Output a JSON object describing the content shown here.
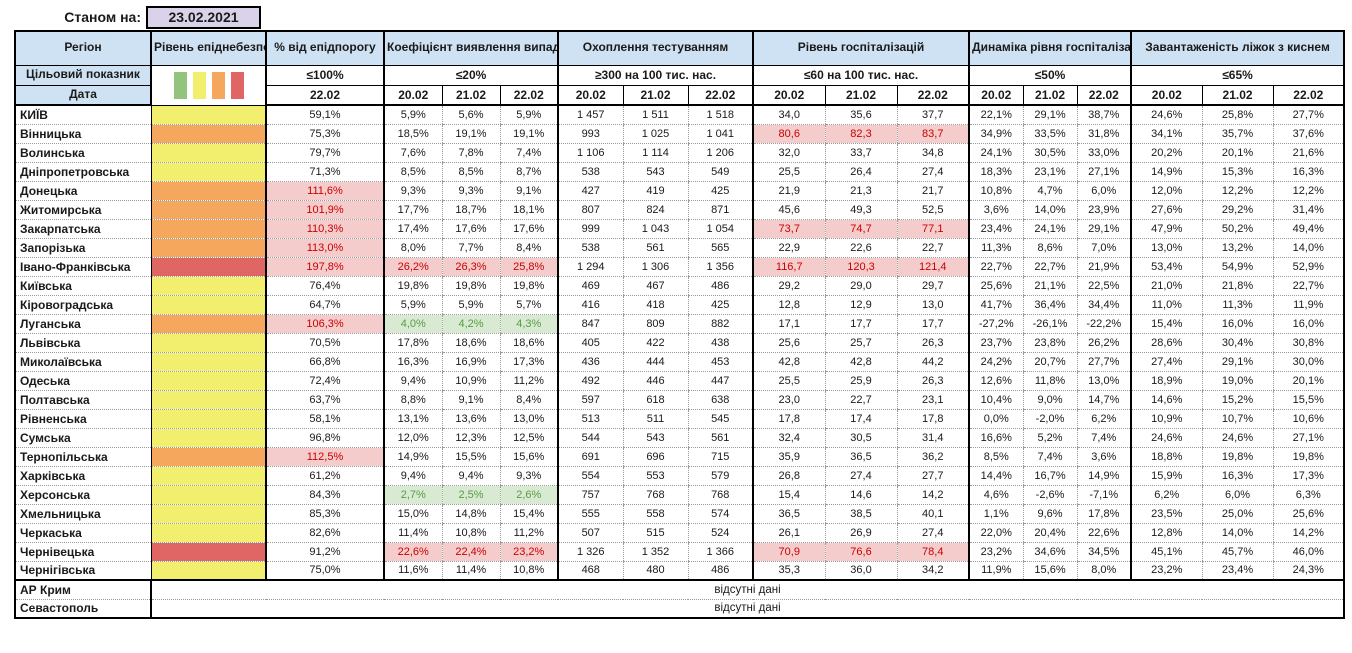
{
  "report": {
    "as_of_label": "Станом на:",
    "as_of_date": "23.02.2021"
  },
  "columns": {
    "region": "Регіон",
    "danger": "Рівень епіднебезпеки",
    "threshold": "% від епідпорогу",
    "detection": "Коефіцієнт виявлення випадків інфікування",
    "testing": "Охоплення тестуванням",
    "hospitalization": "Рівень госпіталізацій",
    "dynamics": "Динаміка рівня госпіталізацій",
    "oxygen": "Завантаженість ліжок з киснем"
  },
  "targets": {
    "row_label": "Цільовий показник",
    "threshold": "≤100%",
    "detection": "≤20%",
    "testing": "≥300 на 100 тис. нас.",
    "hospitalization": "≤60 на 100 тис. нас.",
    "dynamics": "≤50%",
    "oxygen": "≤65%"
  },
  "dates": {
    "row_label": "Дата",
    "threshold_date": "22.02",
    "series": [
      "20.02",
      "21.02",
      "22.02"
    ]
  },
  "legend_colors_order": [
    "green",
    "yellow",
    "orange",
    "red"
  ],
  "no_data_text": "відсутні дані",
  "rows": [
    {
      "region": "КИЇВ",
      "danger": "yellow",
      "threshold": "59,1%",
      "threshold_alert": false,
      "detection": [
        "5,9%",
        "5,6%",
        "5,9%"
      ],
      "detection_style": null,
      "testing": [
        "1 457",
        "1 511",
        "1 518"
      ],
      "hospitalization": [
        "34,0",
        "35,6",
        "37,7"
      ],
      "hospitalization_style": null,
      "dynamics": [
        "22,1%",
        "29,1%",
        "38,7%"
      ],
      "oxygen": [
        "24,6%",
        "25,8%",
        "27,7%"
      ]
    },
    {
      "region": "Вінницька",
      "danger": "orange",
      "threshold": "75,3%",
      "threshold_alert": false,
      "detection": [
        "18,5%",
        "19,1%",
        "19,1%"
      ],
      "detection_style": null,
      "testing": [
        "993",
        "1 025",
        "1 041"
      ],
      "hospitalization": [
        "80,6",
        "82,3",
        "83,7"
      ],
      "hospitalization_style": "alert",
      "dynamics": [
        "34,9%",
        "33,5%",
        "31,8%"
      ],
      "oxygen": [
        "34,1%",
        "35,7%",
        "37,6%"
      ]
    },
    {
      "region": "Волинська",
      "danger": "yellow",
      "threshold": "79,7%",
      "threshold_alert": false,
      "detection": [
        "7,6%",
        "7,8%",
        "7,4%"
      ],
      "detection_style": null,
      "testing": [
        "1 106",
        "1 114",
        "1 206"
      ],
      "hospitalization": [
        "32,0",
        "33,7",
        "34,8"
      ],
      "hospitalization_style": null,
      "dynamics": [
        "24,1%",
        "30,5%",
        "33,0%"
      ],
      "oxygen": [
        "20,2%",
        "20,1%",
        "21,6%"
      ]
    },
    {
      "region": "Дніпропетровська",
      "danger": "yellow",
      "threshold": "71,3%",
      "threshold_alert": false,
      "detection": [
        "8,5%",
        "8,5%",
        "8,7%"
      ],
      "detection_style": null,
      "testing": [
        "538",
        "543",
        "549"
      ],
      "hospitalization": [
        "25,5",
        "26,4",
        "27,4"
      ],
      "hospitalization_style": null,
      "dynamics": [
        "18,3%",
        "23,1%",
        "27,1%"
      ],
      "oxygen": [
        "14,9%",
        "15,3%",
        "16,3%"
      ]
    },
    {
      "region": "Донецька",
      "danger": "orange",
      "threshold": "111,6%",
      "threshold_alert": true,
      "detection": [
        "9,3%",
        "9,3%",
        "9,1%"
      ],
      "detection_style": null,
      "testing": [
        "427",
        "419",
        "425"
      ],
      "hospitalization": [
        "21,9",
        "21,3",
        "21,7"
      ],
      "hospitalization_style": null,
      "dynamics": [
        "10,8%",
        "4,7%",
        "6,0%"
      ],
      "oxygen": [
        "12,0%",
        "12,2%",
        "12,2%"
      ]
    },
    {
      "region": "Житомирська",
      "danger": "orange",
      "threshold": "101,9%",
      "threshold_alert": true,
      "detection": [
        "17,7%",
        "18,7%",
        "18,1%"
      ],
      "detection_style": null,
      "testing": [
        "807",
        "824",
        "871"
      ],
      "hospitalization": [
        "45,6",
        "49,3",
        "52,5"
      ],
      "hospitalization_style": null,
      "dynamics": [
        "3,6%",
        "14,0%",
        "23,9%"
      ],
      "oxygen": [
        "27,6%",
        "29,2%",
        "31,4%"
      ]
    },
    {
      "region": "Закарпатська",
      "danger": "orange",
      "threshold": "110,3%",
      "threshold_alert": true,
      "detection": [
        "17,4%",
        "17,6%",
        "17,6%"
      ],
      "detection_style": null,
      "testing": [
        "999",
        "1 043",
        "1 054"
      ],
      "hospitalization": [
        "73,7",
        "74,7",
        "77,1"
      ],
      "hospitalization_style": "alert",
      "dynamics": [
        "23,4%",
        "24,1%",
        "29,1%"
      ],
      "oxygen": [
        "47,9%",
        "50,2%",
        "49,4%"
      ]
    },
    {
      "region": "Запорізька",
      "danger": "orange",
      "threshold": "113,0%",
      "threshold_alert": true,
      "detection": [
        "8,0%",
        "7,7%",
        "8,4%"
      ],
      "detection_style": null,
      "testing": [
        "538",
        "561",
        "565"
      ],
      "hospitalization": [
        "22,9",
        "22,6",
        "22,7"
      ],
      "hospitalization_style": null,
      "dynamics": [
        "11,3%",
        "8,6%",
        "7,0%"
      ],
      "oxygen": [
        "13,0%",
        "13,2%",
        "14,0%"
      ]
    },
    {
      "region": "Івано-Франківська",
      "danger": "red",
      "threshold": "197,8%",
      "threshold_alert": true,
      "detection": [
        "26,2%",
        "26,3%",
        "25,8%"
      ],
      "detection_style": "alert",
      "testing": [
        "1 294",
        "1 306",
        "1 356"
      ],
      "hospitalization": [
        "116,7",
        "120,3",
        "121,4"
      ],
      "hospitalization_style": "alert",
      "dynamics": [
        "22,7%",
        "22,7%",
        "21,9%"
      ],
      "oxygen": [
        "53,4%",
        "54,9%",
        "52,9%"
      ]
    },
    {
      "region": "Київська",
      "danger": "yellow",
      "threshold": "76,4%",
      "threshold_alert": false,
      "detection": [
        "19,8%",
        "19,8%",
        "19,8%"
      ],
      "detection_style": null,
      "testing": [
        "469",
        "467",
        "486"
      ],
      "hospitalization": [
        "29,2",
        "29,0",
        "29,7"
      ],
      "hospitalization_style": null,
      "dynamics": [
        "25,6%",
        "21,1%",
        "22,5%"
      ],
      "oxygen": [
        "21,0%",
        "21,8%",
        "22,7%"
      ]
    },
    {
      "region": "Кіровоградська",
      "danger": "yellow",
      "threshold": "64,7%",
      "threshold_alert": false,
      "detection": [
        "5,9%",
        "5,9%",
        "5,7%"
      ],
      "detection_style": null,
      "testing": [
        "416",
        "418",
        "425"
      ],
      "hospitalization": [
        "12,8",
        "12,9",
        "13,0"
      ],
      "hospitalization_style": null,
      "dynamics": [
        "41,7%",
        "36,4%",
        "34,4%"
      ],
      "oxygen": [
        "11,0%",
        "11,3%",
        "11,9%"
      ]
    },
    {
      "region": "Луганська",
      "danger": "orange",
      "threshold": "106,3%",
      "threshold_alert": true,
      "detection": [
        "4,0%",
        "4,2%",
        "4,3%"
      ],
      "detection_style": "good",
      "testing": [
        "847",
        "809",
        "882"
      ],
      "hospitalization": [
        "17,1",
        "17,7",
        "17,7"
      ],
      "hospitalization_style": null,
      "dynamics": [
        "-27,2%",
        "-26,1%",
        "-22,2%"
      ],
      "oxygen": [
        "15,4%",
        "16,0%",
        "16,0%"
      ]
    },
    {
      "region": "Львівська",
      "danger": "yellow",
      "threshold": "70,5%",
      "threshold_alert": false,
      "detection": [
        "17,8%",
        "18,6%",
        "18,6%"
      ],
      "detection_style": null,
      "testing": [
        "405",
        "422",
        "438"
      ],
      "hospitalization": [
        "25,6",
        "25,7",
        "26,3"
      ],
      "hospitalization_style": null,
      "dynamics": [
        "23,7%",
        "23,8%",
        "26,2%"
      ],
      "oxygen": [
        "28,6%",
        "30,4%",
        "30,8%"
      ]
    },
    {
      "region": "Миколаївська",
      "danger": "yellow",
      "threshold": "66,8%",
      "threshold_alert": false,
      "detection": [
        "16,3%",
        "16,9%",
        "17,3%"
      ],
      "detection_style": null,
      "testing": [
        "436",
        "444",
        "453"
      ],
      "hospitalization": [
        "42,8",
        "42,8",
        "44,2"
      ],
      "hospitalization_style": null,
      "dynamics": [
        "24,2%",
        "20,7%",
        "27,7%"
      ],
      "oxygen": [
        "27,4%",
        "29,1%",
        "30,0%"
      ]
    },
    {
      "region": "Одеська",
      "danger": "yellow",
      "threshold": "72,4%",
      "threshold_alert": false,
      "detection": [
        "9,4%",
        "10,9%",
        "11,2%"
      ],
      "detection_style": null,
      "testing": [
        "492",
        "446",
        "447"
      ],
      "hospitalization": [
        "25,5",
        "25,9",
        "26,3"
      ],
      "hospitalization_style": null,
      "dynamics": [
        "12,6%",
        "11,8%",
        "13,0%"
      ],
      "oxygen": [
        "18,9%",
        "19,0%",
        "20,1%"
      ]
    },
    {
      "region": "Полтавська",
      "danger": "yellow",
      "threshold": "63,7%",
      "threshold_alert": false,
      "detection": [
        "8,8%",
        "9,1%",
        "8,4%"
      ],
      "detection_style": null,
      "testing": [
        "597",
        "618",
        "638"
      ],
      "hospitalization": [
        "23,0",
        "22,7",
        "23,1"
      ],
      "hospitalization_style": null,
      "dynamics": [
        "10,4%",
        "9,0%",
        "14,7%"
      ],
      "oxygen": [
        "14,6%",
        "15,2%",
        "15,5%"
      ]
    },
    {
      "region": "Рівненська",
      "danger": "yellow",
      "threshold": "58,1%",
      "threshold_alert": false,
      "detection": [
        "13,1%",
        "13,6%",
        "13,0%"
      ],
      "detection_style": null,
      "testing": [
        "513",
        "511",
        "545"
      ],
      "hospitalization": [
        "17,8",
        "17,4",
        "17,8"
      ],
      "hospitalization_style": null,
      "dynamics": [
        "0,0%",
        "-2,0%",
        "6,2%"
      ],
      "oxygen": [
        "10,9%",
        "10,7%",
        "10,6%"
      ]
    },
    {
      "region": "Сумська",
      "danger": "yellow",
      "threshold": "96,8%",
      "threshold_alert": false,
      "detection": [
        "12,0%",
        "12,3%",
        "12,5%"
      ],
      "detection_style": null,
      "testing": [
        "544",
        "543",
        "561"
      ],
      "hospitalization": [
        "32,4",
        "30,5",
        "31,4"
      ],
      "hospitalization_style": null,
      "dynamics": [
        "16,6%",
        "5,2%",
        "7,4%"
      ],
      "oxygen": [
        "24,6%",
        "24,6%",
        "27,1%"
      ]
    },
    {
      "region": "Тернопільська",
      "danger": "orange",
      "threshold": "112,5%",
      "threshold_alert": true,
      "detection": [
        "14,9%",
        "15,5%",
        "15,6%"
      ],
      "detection_style": null,
      "testing": [
        "691",
        "696",
        "715"
      ],
      "hospitalization": [
        "35,9",
        "36,5",
        "36,2"
      ],
      "hospitalization_style": null,
      "dynamics": [
        "8,5%",
        "7,4%",
        "3,6%"
      ],
      "oxygen": [
        "18,8%",
        "19,8%",
        "19,8%"
      ]
    },
    {
      "region": "Харківська",
      "danger": "yellow",
      "threshold": "61,2%",
      "threshold_alert": false,
      "detection": [
        "9,4%",
        "9,4%",
        "9,3%"
      ],
      "detection_style": null,
      "testing": [
        "554",
        "553",
        "579"
      ],
      "hospitalization": [
        "26,8",
        "27,4",
        "27,7"
      ],
      "hospitalization_style": null,
      "dynamics": [
        "14,4%",
        "16,7%",
        "14,9%"
      ],
      "oxygen": [
        "15,9%",
        "16,3%",
        "17,3%"
      ]
    },
    {
      "region": "Херсонська",
      "danger": "yellow",
      "threshold": "84,3%",
      "threshold_alert": false,
      "detection": [
        "2,7%",
        "2,5%",
        "2,6%"
      ],
      "detection_style": "good",
      "testing": [
        "757",
        "768",
        "768"
      ],
      "hospitalization": [
        "15,4",
        "14,6",
        "14,2"
      ],
      "hospitalization_style": null,
      "dynamics": [
        "4,6%",
        "-2,6%",
        "-7,1%"
      ],
      "oxygen": [
        "6,2%",
        "6,0%",
        "6,3%"
      ]
    },
    {
      "region": "Хмельницька",
      "danger": "yellow",
      "threshold": "85,3%",
      "threshold_alert": false,
      "detection": [
        "15,0%",
        "14,8%",
        "15,4%"
      ],
      "detection_style": null,
      "testing": [
        "555",
        "558",
        "574"
      ],
      "hospitalization": [
        "36,5",
        "38,5",
        "40,1"
      ],
      "hospitalization_style": null,
      "dynamics": [
        "1,1%",
        "9,6%",
        "17,8%"
      ],
      "oxygen": [
        "23,5%",
        "25,0%",
        "25,6%"
      ]
    },
    {
      "region": "Черкаська",
      "danger": "yellow",
      "threshold": "82,6%",
      "threshold_alert": false,
      "detection": [
        "11,4%",
        "10,8%",
        "11,2%"
      ],
      "detection_style": null,
      "testing": [
        "507",
        "515",
        "524"
      ],
      "hospitalization": [
        "26,1",
        "26,9",
        "27,4"
      ],
      "hospitalization_style": null,
      "dynamics": [
        "22,0%",
        "20,4%",
        "22,6%"
      ],
      "oxygen": [
        "12,8%",
        "14,0%",
        "14,2%"
      ]
    },
    {
      "region": "Чернівецька",
      "danger": "red",
      "threshold": "91,2%",
      "threshold_alert": false,
      "detection": [
        "22,6%",
        "22,4%",
        "23,2%"
      ],
      "detection_style": "alert",
      "testing": [
        "1 326",
        "1 352",
        "1 366"
      ],
      "hospitalization": [
        "70,9",
        "76,6",
        "78,4"
      ],
      "hospitalization_style": "alert",
      "dynamics": [
        "23,2%",
        "34,6%",
        "34,5%"
      ],
      "oxygen": [
        "45,1%",
        "45,7%",
        "46,0%"
      ]
    },
    {
      "region": "Чернігівська",
      "danger": "yellow",
      "threshold": "75,0%",
      "threshold_alert": false,
      "detection": [
        "11,6%",
        "11,4%",
        "10,8%"
      ],
      "detection_style": null,
      "testing": [
        "468",
        "480",
        "486"
      ],
      "hospitalization": [
        "35,3",
        "36,0",
        "34,2"
      ],
      "hospitalization_style": null,
      "dynamics": [
        "11,9%",
        "15,6%",
        "8,0%"
      ],
      "oxygen": [
        "23,2%",
        "23,4%",
        "24,3%"
      ]
    },
    {
      "region": "АР Крим",
      "no_data": true
    },
    {
      "region": "Севастополь",
      "no_data": true
    }
  ],
  "colors": {
    "header_bg": "#cfe2f3",
    "date_badge_bg": "#d9d2e9",
    "danger_yellow": "#f2ee6e",
    "danger_orange": "#f6a75e",
    "danger_red": "#e06666",
    "danger_green": "#93c47d",
    "alert_bg": "#f4cccc",
    "alert_text": "#cc0000",
    "good_bg": "#d9ead3",
    "good_text": "#5a9a44"
  }
}
